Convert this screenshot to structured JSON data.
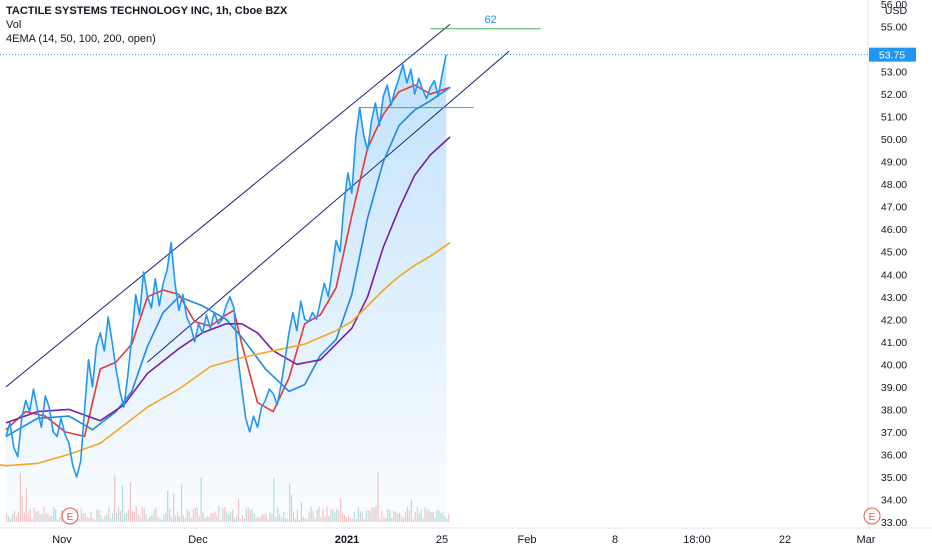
{
  "legend": {
    "title": "TACTILE SYSTEMS TECHNOLOGY INC, 1h, Cboe BZX",
    "vol": "Vol",
    "ema": "4EMA (14, 50, 100, 200, open)"
  },
  "currency": "USD",
  "last_price_label": "53.75",
  "annotation_label": "62",
  "earnings_label": "E",
  "colors": {
    "price": "#2196f3",
    "ema14": "#e53935",
    "ema50": "#1e88e5",
    "ema100": "#7b1fa2",
    "ema200": "#f5a623",
    "channel": "#1a237e",
    "levels": "#4caf50",
    "last_price": "#2196f3"
  },
  "chart_data": {
    "type": "line",
    "ylim": [
      33.0,
      56.0
    ],
    "y_ticks": [
      "33.00",
      "34.00",
      "35.00",
      "36.00",
      "37.00",
      "38.00",
      "39.00",
      "40.00",
      "41.00",
      "42.00",
      "43.00",
      "44.00",
      "45.00",
      "46.00",
      "47.00",
      "48.00",
      "49.00",
      "50.00",
      "51.00",
      "52.00",
      "53.00",
      "55.00",
      "56.00"
    ],
    "x_ticks": [
      "Nov",
      "Dec",
      "2021",
      "25",
      "Feb",
      "8",
      "18:00",
      "22",
      "Mar"
    ],
    "x_ticks_bold": [
      "2021"
    ],
    "price": [
      36.8,
      37.4,
      36.3,
      35.9,
      37.6,
      38.4,
      37.9,
      38.9,
      38.0,
      37.2,
      38.6,
      38.1,
      37.0,
      36.8,
      37.6,
      36.9,
      36.5,
      35.5,
      35.0,
      35.7,
      38.0,
      40.2,
      39.0,
      40.8,
      41.4,
      40.6,
      42.1,
      41.0,
      39.8,
      38.8,
      38.1,
      39.5,
      41.2,
      43.1,
      42.2,
      44.1,
      43.0,
      42.5,
      43.8,
      42.6,
      43.6,
      44.2,
      45.4,
      43.6,
      42.4,
      43.1,
      42.1,
      41.7,
      41.0,
      41.8,
      41.4,
      42.2,
      41.6,
      42.3,
      41.8,
      42.0,
      42.6,
      43.0,
      42.5,
      40.3,
      38.9,
      37.6,
      37.0,
      37.7,
      37.2,
      38.1,
      38.4,
      38.9,
      38.7,
      38.2,
      39.1,
      40.2,
      41.4,
      42.3,
      41.5,
      42.8,
      42.0,
      41.9,
      42.3,
      42.0,
      42.8,
      43.6,
      43.0,
      44.2,
      45.5,
      45.0,
      47.1,
      48.5,
      47.6,
      50.1,
      51.4,
      50.2,
      49.5,
      50.8,
      51.6,
      50.6,
      51.9,
      52.4,
      51.5,
      52.2,
      52.7,
      53.3,
      52.5,
      53.1,
      52.0,
      52.7,
      52.2,
      51.8,
      52.3,
      52.6,
      51.9,
      52.9,
      53.75
    ],
    "channel_upper": [
      [
        0,
        39.0
      ],
      [
        113,
        55.1
      ]
    ],
    "channel_lower": [
      [
        36,
        40.1
      ],
      [
        128,
        53.9
      ]
    ],
    "level_lines": [
      {
        "label": "62",
        "y": 54.9,
        "x1": 108,
        "x2": 136
      },
      {
        "y": 51.4,
        "x1": 90,
        "x2": 119
      }
    ],
    "series": [
      {
        "key": "ema14",
        "points": [
          [
            0,
            37.1
          ],
          [
            5,
            37.9
          ],
          [
            10,
            37.7
          ],
          [
            15,
            37.0
          ],
          [
            20,
            36.8
          ],
          [
            24,
            39.8
          ],
          [
            28,
            40.1
          ],
          [
            32,
            40.9
          ],
          [
            36,
            43.0
          ],
          [
            40,
            43.3
          ],
          [
            44,
            43.1
          ],
          [
            48,
            41.9
          ],
          [
            52,
            41.7
          ],
          [
            56,
            42.2
          ],
          [
            58,
            42.4
          ],
          [
            60,
            40.9
          ],
          [
            64,
            38.3
          ],
          [
            68,
            37.9
          ],
          [
            72,
            39.4
          ],
          [
            76,
            41.8
          ],
          [
            80,
            42.2
          ],
          [
            84,
            43.4
          ],
          [
            88,
            46.6
          ],
          [
            92,
            49.6
          ],
          [
            96,
            51.1
          ],
          [
            100,
            52.1
          ],
          [
            104,
            52.4
          ],
          [
            108,
            52.0
          ],
          [
            113,
            52.3
          ]
        ]
      },
      {
        "key": "ema50",
        "points": [
          [
            0,
            36.8
          ],
          [
            8,
            37.6
          ],
          [
            16,
            37.7
          ],
          [
            22,
            37.1
          ],
          [
            28,
            37.9
          ],
          [
            32,
            38.8
          ],
          [
            36,
            40.8
          ],
          [
            40,
            42.3
          ],
          [
            44,
            43.0
          ],
          [
            50,
            42.6
          ],
          [
            56,
            42.0
          ],
          [
            60,
            41.2
          ],
          [
            66,
            39.8
          ],
          [
            72,
            38.8
          ],
          [
            76,
            39.1
          ],
          [
            80,
            40.4
          ],
          [
            84,
            41.1
          ],
          [
            88,
            43.1
          ],
          [
            92,
            46.5
          ],
          [
            96,
            49.0
          ],
          [
            100,
            50.6
          ],
          [
            104,
            51.3
          ],
          [
            108,
            51.7
          ],
          [
            113,
            52.3
          ]
        ]
      },
      {
        "key": "ema100",
        "points": [
          [
            0,
            37.4
          ],
          [
            8,
            37.9
          ],
          [
            16,
            38.0
          ],
          [
            24,
            37.5
          ],
          [
            30,
            38.2
          ],
          [
            36,
            39.6
          ],
          [
            44,
            40.7
          ],
          [
            50,
            41.4
          ],
          [
            56,
            41.8
          ],
          [
            60,
            41.8
          ],
          [
            64,
            41.4
          ],
          [
            68,
            40.6
          ],
          [
            74,
            40.0
          ],
          [
            80,
            40.2
          ],
          [
            84,
            40.9
          ],
          [
            88,
            41.6
          ],
          [
            92,
            43.0
          ],
          [
            96,
            45.2
          ],
          [
            100,
            46.9
          ],
          [
            104,
            48.4
          ],
          [
            108,
            49.3
          ],
          [
            113,
            50.1
          ]
        ]
      },
      {
        "key": "ema200",
        "points": [
          [
            -4,
            35.6
          ],
          [
            0,
            35.5
          ],
          [
            8,
            35.6
          ],
          [
            16,
            36.0
          ],
          [
            24,
            36.5
          ],
          [
            30,
            37.3
          ],
          [
            36,
            38.1
          ],
          [
            44,
            38.9
          ],
          [
            52,
            39.9
          ],
          [
            60,
            40.3
          ],
          [
            68,
            40.6
          ],
          [
            76,
            40.9
          ],
          [
            84,
            41.5
          ],
          [
            88,
            41.9
          ],
          [
            92,
            42.6
          ],
          [
            96,
            43.3
          ],
          [
            100,
            43.9
          ],
          [
            104,
            44.4
          ],
          [
            108,
            44.8
          ],
          [
            113,
            45.4
          ]
        ]
      }
    ]
  }
}
